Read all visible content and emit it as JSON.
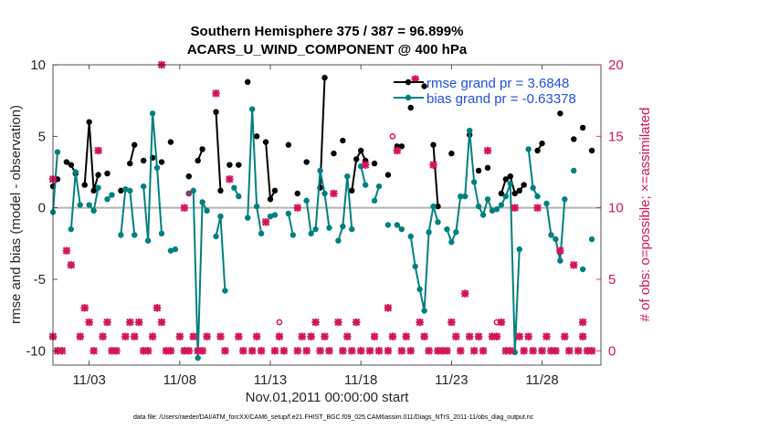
{
  "chart_data": {
    "type": "line",
    "title_line1": "Southern Hemisphere 375 / 387 = 96.899%",
    "title_line2": "ACARS_U_WIND_COMPONENT @ 400 hPa",
    "xlabel": "Nov.01,2011 00:00:00 start",
    "ylabel_left": "rmse and bias (model - observation)",
    "ylabel_right": "# of obs: o=possible; ×=assimilated",
    "xlim": [
      1,
      31.25
    ],
    "ylim_left": [
      -11,
      10
    ],
    "ylim_right": [
      -1,
      20
    ],
    "x_ticks": [
      3,
      8,
      13,
      18,
      23,
      28
    ],
    "x_tick_labels": [
      "11/03",
      "11/08",
      "11/13",
      "11/18",
      "11/23",
      "11/28"
    ],
    "y_ticks_left": [
      10,
      5,
      0,
      -5,
      -10
    ],
    "y_tick_labels_left": [
      "10",
      "5",
      "0",
      "-5",
      "-10"
    ],
    "y_ticks_right": [
      20,
      15,
      10,
      5,
      0
    ],
    "y_tick_labels_right": [
      "20",
      "15",
      "10",
      "5",
      "0"
    ],
    "zero_line": 0,
    "legend": {
      "rmse": "rmse grand pr = 3.6848",
      "bias": "bias grand pr = -0.63378"
    },
    "colors": {
      "rmse": "#000000",
      "bias": "#008080",
      "obs": "#d4145a",
      "zero": "#b3b3b3",
      "legend_text": "#1f4fe0"
    },
    "series": [
      {
        "name": "rmse",
        "axis": "left",
        "points": [
          [
            1.0,
            1.5
          ],
          [
            1.25,
            2.0
          ],
          [
            1.75,
            3.2
          ],
          [
            2.0,
            3.0
          ],
          [
            2.25,
            2.4
          ],
          [
            2.75,
            1.6
          ],
          [
            3.0,
            6.0
          ],
          [
            3.25,
            1.2
          ],
          [
            3.5,
            2.3
          ],
          [
            4.0,
            2.4
          ],
          [
            4.75,
            1.2
          ],
          [
            5.25,
            3.1
          ],
          [
            5.5,
            4.4
          ],
          [
            6.0,
            3.3
          ],
          [
            6.5,
            3.5
          ],
          [
            7.0,
            3.2
          ],
          [
            7.5,
            4.6
          ],
          [
            8.5,
            2.2
          ],
          [
            9.0,
            3.3
          ],
          [
            9.25,
            4.1
          ],
          [
            10.0,
            6.7
          ],
          [
            10.25,
            1.2
          ],
          [
            10.75,
            3.0
          ],
          [
            11.25,
            3.0
          ],
          [
            11.75,
            8.8
          ],
          [
            12.25,
            5.0
          ],
          [
            12.75,
            4.6
          ],
          [
            13.0,
            0.6
          ],
          [
            13.25,
            1.2
          ],
          [
            14.0,
            4.4
          ],
          [
            14.5,
            1.0
          ],
          [
            15.0,
            3.2
          ],
          [
            15.75,
            1.4
          ],
          [
            16.0,
            9.1
          ],
          [
            16.5,
            3.8
          ],
          [
            17.0,
            4.7
          ],
          [
            17.5,
            1.2
          ],
          [
            17.75,
            3.4
          ],
          [
            18.0,
            4.0
          ],
          [
            18.25,
            3.3
          ],
          [
            18.75,
            3.1
          ],
          [
            19.5,
            2.3
          ],
          [
            20.0,
            4.3
          ],
          [
            20.25,
            4.3
          ],
          [
            20.75,
            7.0
          ],
          [
            21.5,
            8.5
          ],
          [
            22.0,
            4.4
          ],
          [
            22.25,
            0.1
          ],
          [
            23.0,
            3.8
          ],
          [
            24.0,
            5.1
          ],
          [
            24.5,
            2.6
          ],
          [
            25.0,
            2.8
          ],
          [
            25.75,
            1.0
          ],
          [
            26.0,
            2.0
          ],
          [
            26.25,
            2.2
          ],
          [
            26.5,
            1.0
          ],
          [
            26.75,
            1.2
          ],
          [
            27.0,
            1.6
          ],
          [
            27.75,
            4.0
          ],
          [
            28.0,
            4.5
          ],
          [
            29.0,
            6.6
          ],
          [
            29.75,
            4.8
          ],
          [
            30.25,
            5.6
          ],
          [
            30.75,
            4.0
          ]
        ]
      },
      {
        "name": "bias",
        "axis": "left",
        "points": [
          [
            1.0,
            -0.3
          ],
          [
            1.25,
            3.9
          ],
          [
            2.0,
            -1.5
          ],
          [
            2.25,
            2.5
          ],
          [
            2.5,
            0.2
          ],
          [
            3.0,
            0.2
          ],
          [
            3.25,
            -0.2
          ],
          [
            3.5,
            1.4
          ],
          [
            4.0,
            0.6
          ],
          [
            4.25,
            0.9
          ],
          [
            4.75,
            -1.9
          ],
          [
            5.0,
            1.3
          ],
          [
            5.25,
            1.2
          ],
          [
            5.5,
            -1.9
          ],
          [
            6.0,
            1.5
          ],
          [
            6.25,
            -2.3
          ],
          [
            6.5,
            6.6
          ],
          [
            6.75,
            2.8
          ],
          [
            7.0,
            -1.8
          ],
          [
            7.5,
            -3.0
          ],
          [
            7.75,
            -2.9
          ],
          [
            8.5,
            1.0
          ],
          [
            8.75,
            1.2
          ],
          [
            9.0,
            -10.5
          ],
          [
            9.25,
            0.4
          ],
          [
            9.5,
            -0.2
          ],
          [
            10.0,
            -2.0
          ],
          [
            10.25,
            -0.6
          ],
          [
            10.5,
            -5.8
          ],
          [
            11.0,
            1.4
          ],
          [
            11.25,
            0.8
          ],
          [
            11.75,
            -0.7
          ],
          [
            12.0,
            6.9
          ],
          [
            12.25,
            0.1
          ],
          [
            12.5,
            -1.8
          ],
          [
            13.0,
            -0.6
          ],
          [
            13.25,
            -0.5
          ],
          [
            14.0,
            -0.4
          ],
          [
            14.25,
            -1.9
          ],
          [
            15.0,
            0.5
          ],
          [
            15.25,
            -1.8
          ],
          [
            15.5,
            -1.5
          ],
          [
            15.75,
            2.6
          ],
          [
            16.0,
            1.0
          ],
          [
            16.25,
            -1.4
          ],
          [
            16.75,
            -2.3
          ],
          [
            17.0,
            -1.3
          ],
          [
            17.25,
            2.2
          ],
          [
            17.5,
            -1.5
          ],
          [
            18.0,
            2.9
          ],
          [
            18.25,
            1.6
          ],
          [
            18.75,
            0.5
          ],
          [
            19.0,
            1.5
          ],
          [
            19.5,
            -1.2
          ],
          [
            20.0,
            -1.2
          ],
          [
            20.25,
            -1.5
          ],
          [
            20.75,
            -2.0
          ],
          [
            21.0,
            -4.1
          ],
          [
            21.25,
            -5.7
          ],
          [
            21.5,
            -7.2
          ],
          [
            21.75,
            -1.7
          ],
          [
            22.0,
            0.1
          ],
          [
            22.25,
            -1.0
          ],
          [
            22.75,
            -1.5
          ],
          [
            23.0,
            -2.4
          ],
          [
            23.25,
            -1.7
          ],
          [
            23.5,
            0.8
          ],
          [
            23.75,
            0.8
          ],
          [
            24.0,
            5.4
          ],
          [
            24.25,
            1.8
          ],
          [
            24.5,
            0.1
          ],
          [
            24.75,
            -0.5
          ],
          [
            25.0,
            0.6
          ],
          [
            25.25,
            -0.2
          ],
          [
            25.5,
            -0.1
          ],
          [
            25.75,
            0.2
          ],
          [
            26.0,
            0.8
          ],
          [
            26.25,
            1.7
          ],
          [
            26.5,
            -10.1
          ],
          [
            26.75,
            -2.9
          ],
          [
            27.25,
            4.1
          ],
          [
            27.5,
            1.4
          ],
          [
            27.75,
            0.8
          ],
          [
            28.25,
            0.3
          ],
          [
            28.5,
            -1.9
          ],
          [
            28.75,
            -2.2
          ],
          [
            29.0,
            -3.7
          ],
          [
            29.25,
            0.6
          ],
          [
            29.75,
            2.6
          ],
          [
            30.25,
            -4.3
          ],
          [
            30.75,
            -2.2
          ]
        ]
      },
      {
        "name": "obs_assimilated",
        "axis": "right",
        "marker": "x",
        "points": [
          [
            1.0,
            12
          ],
          [
            1.0,
            1
          ],
          [
            1.25,
            0
          ],
          [
            1.5,
            0
          ],
          [
            1.75,
            7
          ],
          [
            2.0,
            6
          ],
          [
            2.5,
            1
          ],
          [
            2.75,
            3
          ],
          [
            3.0,
            2
          ],
          [
            3.25,
            0
          ],
          [
            3.5,
            14
          ],
          [
            3.75,
            1
          ],
          [
            4.0,
            2
          ],
          [
            4.25,
            0
          ],
          [
            4.5,
            0
          ],
          [
            5.0,
            1
          ],
          [
            5.25,
            2
          ],
          [
            5.5,
            1
          ],
          [
            5.75,
            2
          ],
          [
            6.0,
            0
          ],
          [
            6.25,
            0
          ],
          [
            6.5,
            1
          ],
          [
            6.75,
            3
          ],
          [
            7.0,
            20
          ],
          [
            7.0,
            2
          ],
          [
            7.25,
            0
          ],
          [
            7.5,
            0
          ],
          [
            8.0,
            1
          ],
          [
            8.25,
            10
          ],
          [
            8.25,
            0
          ],
          [
            8.5,
            0
          ],
          [
            8.75,
            1
          ],
          [
            9.0,
            0
          ],
          [
            9.25,
            0
          ],
          [
            9.5,
            1
          ],
          [
            10.0,
            18
          ],
          [
            10.25,
            1
          ],
          [
            10.5,
            0
          ],
          [
            10.75,
            12
          ],
          [
            11.25,
            1
          ],
          [
            11.5,
            0
          ],
          [
            12.0,
            0
          ],
          [
            12.25,
            1
          ],
          [
            12.5,
            0
          ],
          [
            12.75,
            9
          ],
          [
            13.25,
            0
          ],
          [
            13.5,
            1
          ],
          [
            13.75,
            0
          ],
          [
            14.5,
            10
          ],
          [
            14.5,
            0
          ],
          [
            14.75,
            1
          ],
          [
            15.0,
            0
          ],
          [
            15.25,
            1
          ],
          [
            15.5,
            2
          ],
          [
            15.75,
            0
          ],
          [
            16.0,
            1
          ],
          [
            16.25,
            0
          ],
          [
            16.5,
            11
          ],
          [
            16.75,
            2
          ],
          [
            17.0,
            0
          ],
          [
            17.25,
            1
          ],
          [
            17.5,
            0
          ],
          [
            17.75,
            2
          ],
          [
            18.0,
            0
          ],
          [
            18.25,
            13
          ],
          [
            18.5,
            0
          ],
          [
            18.75,
            1
          ],
          [
            19.0,
            0
          ],
          [
            19.5,
            3
          ],
          [
            19.5,
            0
          ],
          [
            19.75,
            1
          ],
          [
            20.0,
            14
          ],
          [
            20.25,
            0
          ],
          [
            20.5,
            1
          ],
          [
            20.75,
            0
          ],
          [
            21.0,
            19
          ],
          [
            21.25,
            2
          ],
          [
            21.5,
            1
          ],
          [
            21.75,
            0
          ],
          [
            22.0,
            13
          ],
          [
            22.25,
            0
          ],
          [
            22.5,
            0
          ],
          [
            22.75,
            0
          ],
          [
            23.0,
            2
          ],
          [
            23.25,
            1
          ],
          [
            23.5,
            0
          ],
          [
            23.75,
            4
          ],
          [
            24.0,
            1
          ],
          [
            24.25,
            0
          ],
          [
            24.5,
            1
          ],
          [
            24.75,
            0
          ],
          [
            25.0,
            14
          ],
          [
            25.25,
            1
          ],
          [
            25.5,
            1
          ],
          [
            25.75,
            2
          ],
          [
            26.0,
            0
          ],
          [
            26.25,
            0
          ],
          [
            26.5,
            10
          ],
          [
            26.75,
            1
          ],
          [
            27.0,
            0
          ],
          [
            27.25,
            1
          ],
          [
            27.5,
            0
          ],
          [
            27.75,
            10
          ],
          [
            28.0,
            0
          ],
          [
            28.25,
            1
          ],
          [
            28.5,
            0
          ],
          [
            28.75,
            0
          ],
          [
            29.0,
            7
          ],
          [
            29.25,
            1
          ],
          [
            29.5,
            0
          ],
          [
            29.75,
            6
          ],
          [
            30.0,
            0
          ],
          [
            30.25,
            1
          ],
          [
            30.25,
            2
          ],
          [
            30.5,
            0
          ],
          [
            30.75,
            0
          ]
        ]
      },
      {
        "name": "obs_possible",
        "axis": "right",
        "marker": "o",
        "points": [
          [
            8.5,
            11
          ],
          [
            13.5,
            2
          ],
          [
            19.75,
            15
          ],
          [
            25.5,
            2
          ]
        ]
      }
    ],
    "footnote": "data file: /Users/raeder/DAI/ATM_forcXX/CAM6_setup/f.e21.FHIST_BGC.f09_025.CAM6assim.011/Diags_NTrS_2011-11/obs_diag_output.nc"
  }
}
